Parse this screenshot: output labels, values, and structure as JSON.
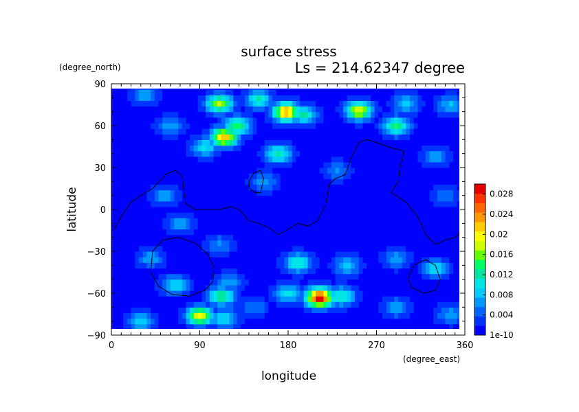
{
  "chart_data": {
    "type": "heatmap",
    "title": "surface stress",
    "subtitle": "Ls = 214.62347 degree",
    "xlabel": "longitude",
    "ylabel": "latitude",
    "x_units": "(degree_east)",
    "y_units": "(degree_north)",
    "xlim": [
      0,
      360
    ],
    "ylim": [
      -90,
      90
    ],
    "x_ticks": [
      "0",
      "90",
      "180",
      "270",
      "360"
    ],
    "y_ticks": [
      "90",
      "60",
      "30",
      "0",
      "−30",
      "−60",
      "−90"
    ],
    "colorbar": {
      "labels": [
        "0.028",
        "0.024",
        "0.02",
        "0.016",
        "0.012",
        "0.008",
        "0.004",
        "1e-10"
      ],
      "label_values": [
        0.028,
        0.024,
        0.02,
        0.016,
        0.012,
        0.008,
        0.004,
        0
      ],
      "min": 0,
      "max": 0.03,
      "colors": [
        "#0000ff",
        "#0033ff",
        "#0066ff",
        "#0099ff",
        "#00ccff",
        "#00e5e5",
        "#00e6a0",
        "#00ff66",
        "#66ff00",
        "#ccff00",
        "#ffff00",
        "#ffcc00",
        "#ff9900",
        "#ff6600",
        "#ff3300",
        "#e60000"
      ]
    },
    "background_value": 0.001,
    "features": [
      {
        "lon": 110,
        "lat": 76,
        "value": 0.016
      },
      {
        "lon": 150,
        "lat": 79,
        "value": 0.011
      },
      {
        "lon": 178,
        "lat": 70,
        "value": 0.022
      },
      {
        "lon": 196,
        "lat": 68,
        "value": 0.011
      },
      {
        "lon": 252,
        "lat": 71,
        "value": 0.018
      },
      {
        "lon": 300,
        "lat": 76,
        "value": 0.008
      },
      {
        "lon": 345,
        "lat": 75,
        "value": 0.007
      },
      {
        "lon": 35,
        "lat": 82,
        "value": 0.006
      },
      {
        "lon": 290,
        "lat": 60,
        "value": 0.013
      },
      {
        "lon": 115,
        "lat": 52,
        "value": 0.021
      },
      {
        "lon": 128,
        "lat": 60,
        "value": 0.013
      },
      {
        "lon": 95,
        "lat": 45,
        "value": 0.009
      },
      {
        "lon": 170,
        "lat": 40,
        "value": 0.011
      },
      {
        "lon": 60,
        "lat": 60,
        "value": 0.006
      },
      {
        "lon": 330,
        "lat": 38,
        "value": 0.006
      },
      {
        "lon": 230,
        "lat": 28,
        "value": 0.005
      },
      {
        "lon": 155,
        "lat": 20,
        "value": 0.006
      },
      {
        "lon": 55,
        "lat": 10,
        "value": 0.006
      },
      {
        "lon": 70,
        "lat": -10,
        "value": 0.006
      },
      {
        "lon": 110,
        "lat": -25,
        "value": 0.005
      },
      {
        "lon": 340,
        "lat": 10,
        "value": 0.005
      },
      {
        "lon": 40,
        "lat": -35,
        "value": 0.006
      },
      {
        "lon": 65,
        "lat": -54,
        "value": 0.009
      },
      {
        "lon": 120,
        "lat": -52,
        "value": 0.006
      },
      {
        "lon": 190,
        "lat": -38,
        "value": 0.011
      },
      {
        "lon": 240,
        "lat": -40,
        "value": 0.008
      },
      {
        "lon": 290,
        "lat": -35,
        "value": 0.006
      },
      {
        "lon": 330,
        "lat": -42,
        "value": 0.009
      },
      {
        "lon": 212,
        "lat": -63,
        "value": 0.029
      },
      {
        "lon": 235,
        "lat": -62,
        "value": 0.011
      },
      {
        "lon": 180,
        "lat": -60,
        "value": 0.009
      },
      {
        "lon": 112,
        "lat": -62,
        "value": 0.013
      },
      {
        "lon": 145,
        "lat": -70,
        "value": 0.005
      },
      {
        "lon": 90,
        "lat": -76,
        "value": 0.018
      },
      {
        "lon": 115,
        "lat": -78,
        "value": 0.009
      },
      {
        "lon": 30,
        "lat": -80,
        "value": 0.008
      },
      {
        "lon": 290,
        "lat": -70,
        "value": 0.007
      },
      {
        "lon": 345,
        "lat": -75,
        "value": 0.006
      }
    ],
    "outlines": [
      {
        "name": "",
        "points": [
          [
            2,
            -15
          ],
          [
            10,
            -5
          ],
          [
            20,
            5
          ],
          [
            30,
            10
          ],
          [
            42,
            15
          ],
          [
            55,
            25
          ],
          [
            65,
            28
          ],
          [
            72,
            24
          ],
          [
            74,
            12
          ],
          [
            76,
            4
          ],
          [
            85,
            0
          ],
          [
            100,
            0
          ],
          [
            110,
            0
          ],
          [
            122,
            2
          ],
          [
            130,
            0
          ],
          [
            140,
            -8
          ],
          [
            150,
            -10
          ],
          [
            160,
            -13
          ],
          [
            170,
            -18
          ],
          [
            178,
            -15
          ],
          [
            190,
            -10
          ],
          [
            200,
            -12
          ],
          [
            210,
            -8
          ],
          [
            218,
            3
          ],
          [
            222,
            18
          ],
          [
            228,
            22
          ],
          [
            238,
            25
          ],
          [
            245,
            38
          ],
          [
            252,
            48
          ],
          [
            260,
            50
          ],
          [
            270,
            48
          ],
          [
            285,
            44
          ],
          [
            298,
            42
          ],
          [
            294,
            30
          ],
          [
            292,
            20
          ],
          [
            285,
            12
          ],
          [
            290,
            10
          ],
          [
            300,
            5
          ],
          [
            310,
            -3
          ],
          [
            315,
            -10
          ],
          [
            320,
            -18
          ],
          [
            330,
            -25
          ],
          [
            340,
            -22
          ],
          [
            350,
            -20
          ],
          [
            360,
            -14
          ]
        ]
      },
      {
        "name": "",
        "points": [
          [
            140,
            20
          ],
          [
            145,
            26
          ],
          [
            152,
            28
          ],
          [
            155,
            22
          ],
          [
            152,
            12
          ],
          [
            146,
            12
          ],
          [
            141,
            15
          ],
          [
            140,
            20
          ]
        ]
      },
      {
        "name": "",
        "points": [
          [
            40,
            -45
          ],
          [
            42,
            -30
          ],
          [
            52,
            -22
          ],
          [
            68,
            -20
          ],
          [
            85,
            -24
          ],
          [
            98,
            -32
          ],
          [
            105,
            -42
          ],
          [
            103,
            -52
          ],
          [
            95,
            -58
          ],
          [
            80,
            -62
          ],
          [
            62,
            -61
          ],
          [
            48,
            -55
          ],
          [
            40,
            -45
          ]
        ]
      },
      {
        "name": "",
        "points": [
          [
            302,
            -50
          ],
          [
            308,
            -40
          ],
          [
            320,
            -36
          ],
          [
            330,
            -40
          ],
          [
            335,
            -50
          ],
          [
            330,
            -58
          ],
          [
            318,
            -60
          ],
          [
            306,
            -56
          ],
          [
            302,
            -50
          ]
        ]
      }
    ]
  }
}
